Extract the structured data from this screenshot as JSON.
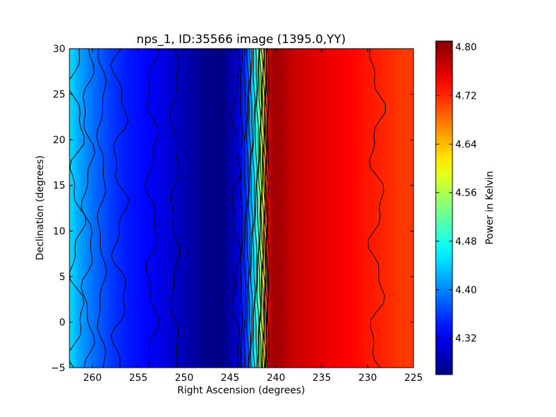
{
  "chart_data": {
    "type": "heatmap",
    "title": "nps_1, ID:35566 image (1395.0,YY)",
    "xlabel": "Right Ascension (degrees)",
    "ylabel": "Declination (degrees)",
    "xlim": [
      262.5,
      225.0
    ],
    "ylim": [
      -5,
      30
    ],
    "x_ticks": [
      260,
      255,
      250,
      245,
      240,
      235,
      230,
      225
    ],
    "x_tick_labels": [
      "260",
      "255",
      "250",
      "245",
      "240",
      "235",
      "230",
      "225"
    ],
    "y_ticks": [
      -5,
      0,
      5,
      10,
      15,
      20,
      25,
      30
    ],
    "y_tick_labels": [
      "−5",
      "0",
      "5",
      "10",
      "15",
      "20",
      "25",
      "30"
    ],
    "colorbar": {
      "label": "Power in Kelvin",
      "range": [
        4.26,
        4.81
      ],
      "ticks": [
        4.32,
        4.4,
        4.48,
        4.56,
        4.64,
        4.72,
        4.8
      ],
      "tick_labels": [
        "4.32",
        "4.40",
        "4.48",
        "4.56",
        "4.64",
        "4.72",
        "4.80"
      ],
      "colormap": "jet"
    },
    "power_profile_by_ra": {
      "ra": [
        262.5,
        261.5,
        260.0,
        258.0,
        256.0,
        254.0,
        252.0,
        250.0,
        248.0,
        246.0,
        245.0,
        244.0,
        243.2,
        242.8,
        242.3,
        241.8,
        241.3,
        240.9,
        240.5,
        239.5,
        238.0,
        236.0,
        234.0,
        232.0,
        230.0,
        228.0,
        226.0,
        225.0
      ],
      "power": [
        4.45,
        4.42,
        4.39,
        4.36,
        4.34,
        4.33,
        4.31,
        4.29,
        4.27,
        4.26,
        4.28,
        4.31,
        4.36,
        4.41,
        4.46,
        4.52,
        4.62,
        4.74,
        4.79,
        4.79,
        4.77,
        4.76,
        4.75,
        4.74,
        4.73,
        4.72,
        4.71,
        4.71
      ]
    },
    "grid": false,
    "legend": "none"
  }
}
